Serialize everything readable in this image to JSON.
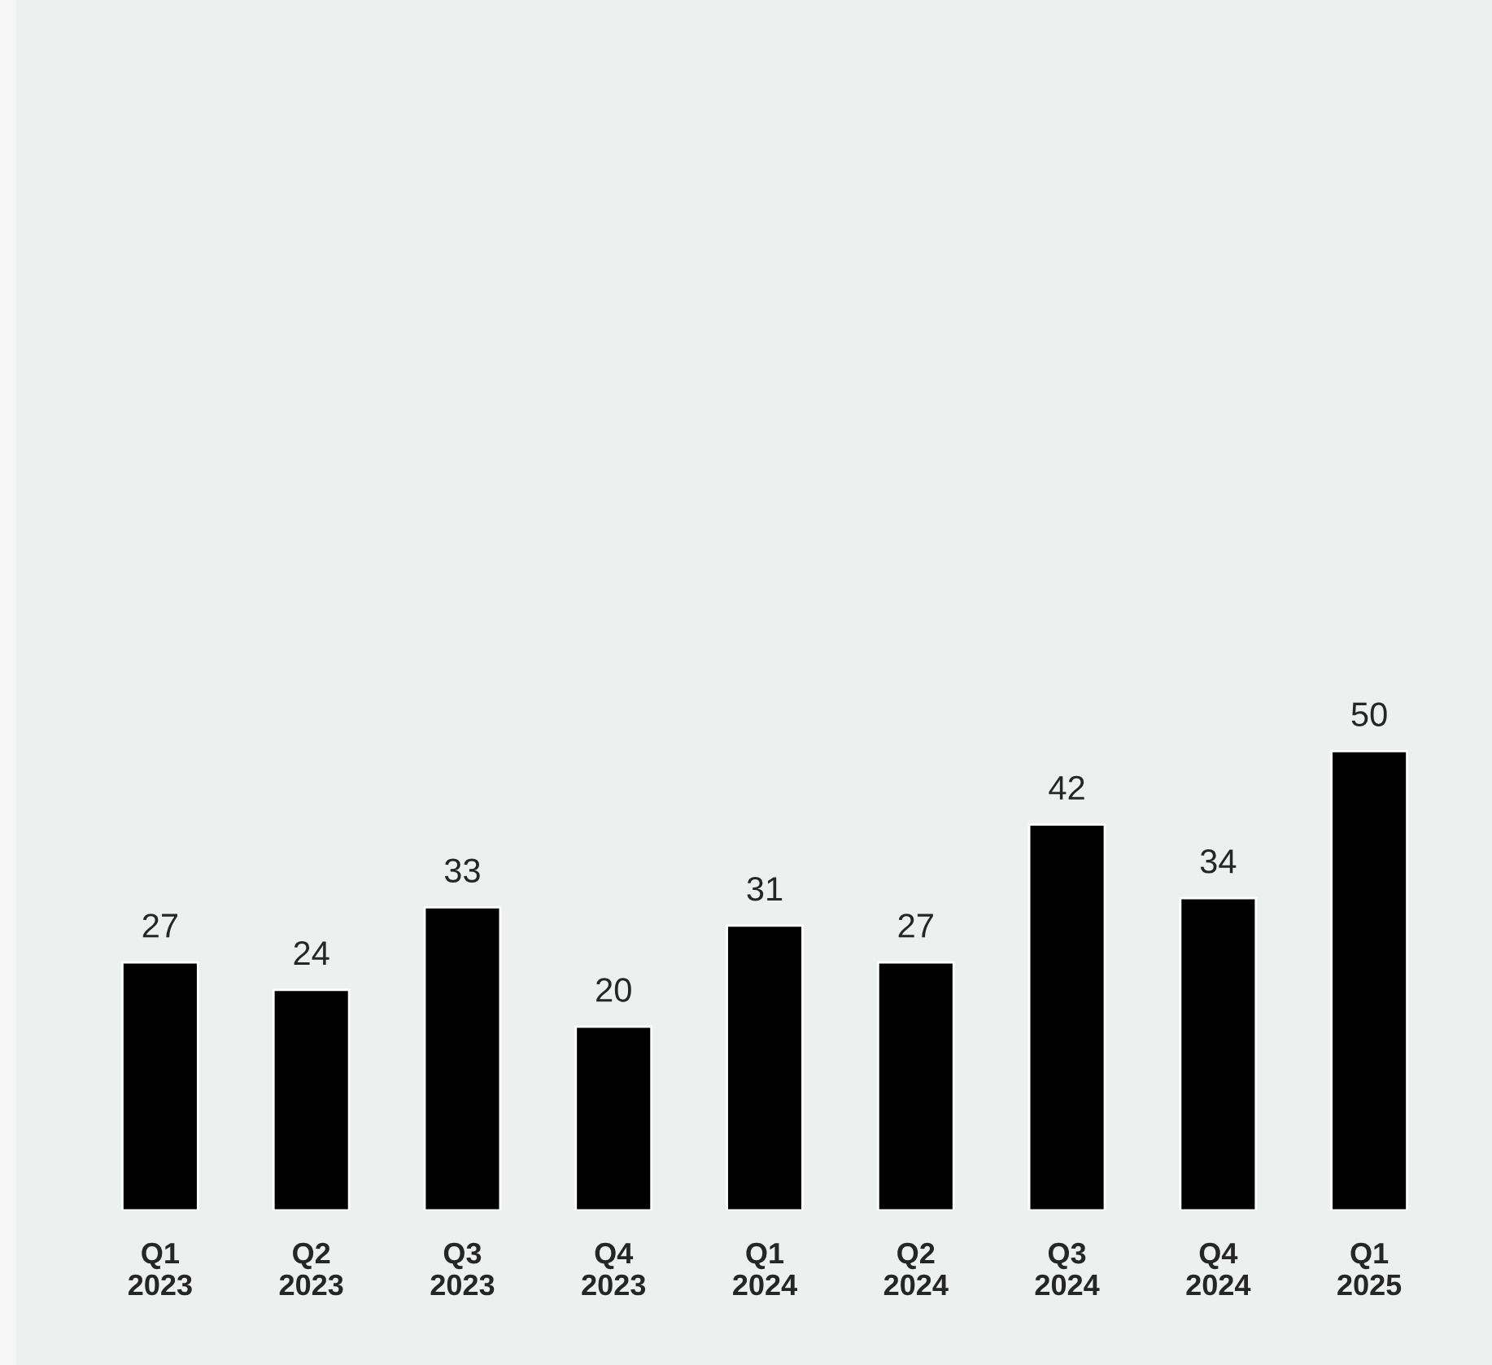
{
  "chart_data": {
    "type": "bar",
    "categories": [
      "Q1\n2023",
      "Q2\n2023",
      "Q3\n2023",
      "Q4\n2023",
      "Q1\n2024",
      "Q2\n2024",
      "Q3\n2024",
      "Q4\n2024",
      "Q1\n2025"
    ],
    "values": [
      27,
      24,
      33,
      20,
      31,
      27,
      42,
      34,
      50
    ],
    "color": "#000000",
    "data_labels": true,
    "grid": false,
    "legend": false
  }
}
